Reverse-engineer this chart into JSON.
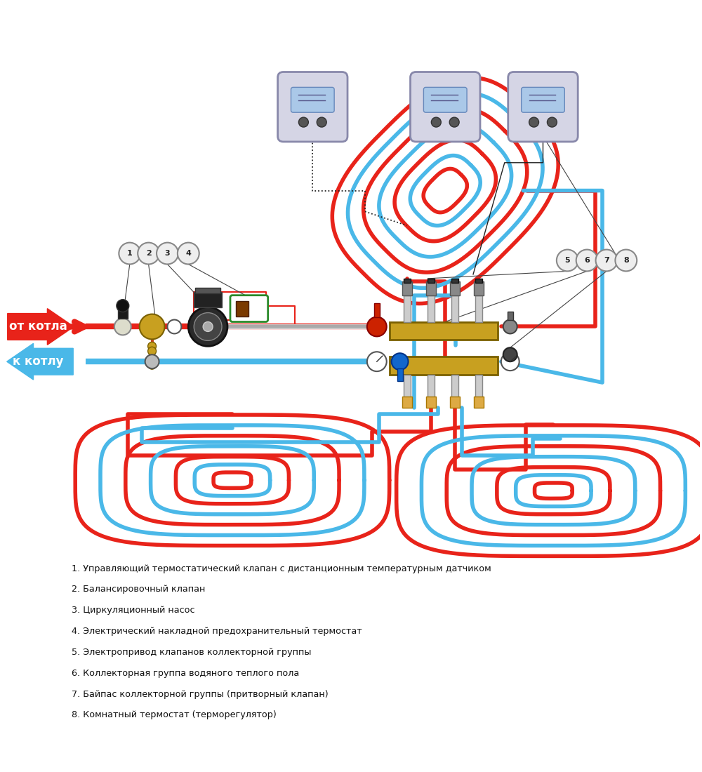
{
  "bg_color": "#ffffff",
  "red_color": "#e8231a",
  "blue_color": "#4ab8e8",
  "gold_color": "#c8a020",
  "dark_color": "#222222",
  "green_color": "#2a8a2a",
  "gray_color": "#b0b0b8",
  "legend_items": [
    "1. Управляющий термостатический клапан с дистанционным температурным датчиком",
    "2. Балансировочный клапан",
    "3. Циркуляционный насос",
    "4. Электрический накладной предохранительный термостат",
    "5. Электропривод клапанов коллекторной группы",
    "6. Коллекторная группа водяного теплого пола",
    "7. Байпас коллекторной группы (притворный клапан)",
    "8. Комнатный термостат (терморегулятор)"
  ],
  "label_from_boiler": "от котла",
  "label_to_boiler": "к котлу"
}
